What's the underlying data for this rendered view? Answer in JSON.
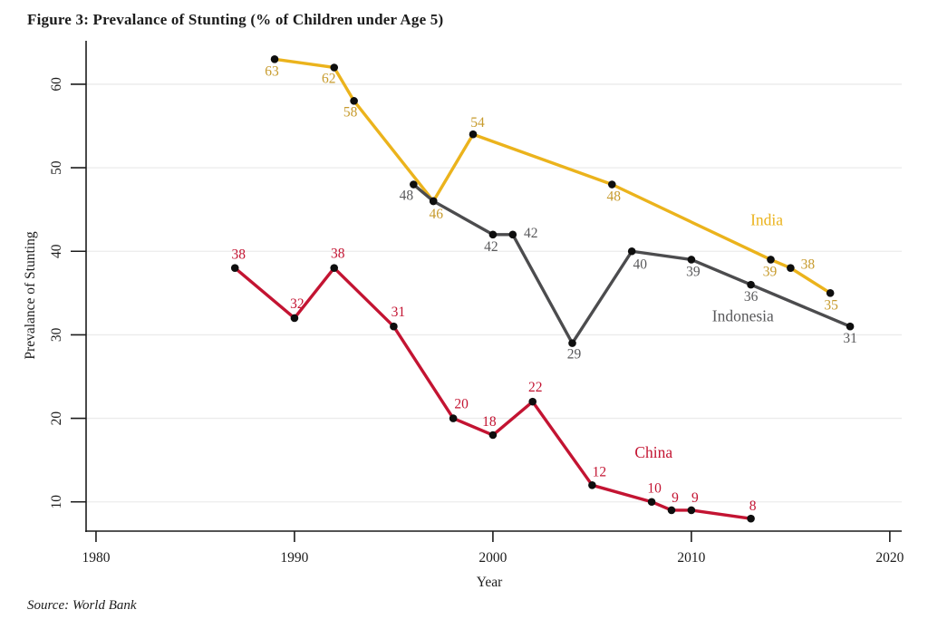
{
  "page": {
    "title": "Figure 3: Prevalance of Stunting (% of Children under Age 5)",
    "source_note": "Source: World Bank"
  },
  "chart_data": {
    "type": "line",
    "title": "Figure 3: Prevalance of Stunting (% of Children under Age 5)",
    "xlabel": "Year",
    "ylabel": "Prevalance of Stunting",
    "xlim": [
      1979.5,
      2020.6
    ],
    "ylim": [
      6.5,
      65.2
    ],
    "xticks": [
      1980,
      1990,
      2000,
      2010,
      2020
    ],
    "yticks": [
      10,
      20,
      30,
      40,
      50,
      60
    ],
    "grid": "horizontal-light",
    "legend": "inline-series-labels",
    "marker": "filled-circle",
    "colors": {
      "axis": "#1c1c1c",
      "gridline": "#ebebeb",
      "marker": "#0e0e0e",
      "tick_text": "#1c1c1c"
    },
    "series": [
      {
        "name": "India",
        "color": "#EBB31C",
        "label_color": "#C79B2D",
        "name_label": {
          "year": 2013.8,
          "value": 43.1
        },
        "points": [
          {
            "year": 1989,
            "value": 63,
            "dx": -3,
            "dy": 18
          },
          {
            "year": 1992,
            "value": 62,
            "dx": -6,
            "dy": 17
          },
          {
            "year": 1993,
            "value": 58,
            "dx": -4,
            "dy": 17
          },
          {
            "year": 1997,
            "value": 46,
            "dx": 3,
            "dy": 19
          },
          {
            "year": 1999,
            "value": 54,
            "dx": 5,
            "dy": -8
          },
          {
            "year": 2006,
            "value": 48,
            "dx": 2,
            "dy": 18
          },
          {
            "year": 2014,
            "value": 39,
            "dx": -1,
            "dy": 18
          },
          {
            "year": 2015,
            "value": 38,
            "dx": 19,
            "dy": 1
          },
          {
            "year": 2017,
            "value": 35,
            "dx": 1,
            "dy": 18
          }
        ]
      },
      {
        "name": "Indonesia",
        "color": "#4C4C4E",
        "label_color": "#59595B",
        "name_label": {
          "year": 2012.6,
          "value": 31.6
        },
        "points": [
          {
            "year": 1996,
            "value": 48,
            "dx": -8,
            "dy": 17
          },
          {
            "year": 1997,
            "value": 46,
            "show_label": false
          },
          {
            "year": 2000,
            "value": 42,
            "dx": -2,
            "dy": 18
          },
          {
            "year": 2001,
            "value": 42,
            "dx": 20,
            "dy": 3
          },
          {
            "year": 2004,
            "value": 29,
            "dx": 2,
            "dy": 17
          },
          {
            "year": 2007,
            "value": 40,
            "dx": 9,
            "dy": 19
          },
          {
            "year": 2010,
            "value": 39,
            "dx": 2,
            "dy": 18
          },
          {
            "year": 2013,
            "value": 36,
            "dx": 0,
            "dy": 18
          },
          {
            "year": 2018,
            "value": 31,
            "dx": 0,
            "dy": 18
          }
        ]
      },
      {
        "name": "China",
        "color": "#C31432",
        "label_color": "#C31432",
        "name_label": {
          "year": 2008.1,
          "value": 15.3
        },
        "points": [
          {
            "year": 1987,
            "value": 38,
            "dx": 4,
            "dy": -10
          },
          {
            "year": 1990,
            "value": 32,
            "dx": 3,
            "dy": -11
          },
          {
            "year": 1992,
            "value": 38,
            "dx": 4,
            "dy": -11
          },
          {
            "year": 1995,
            "value": 31,
            "dx": 5,
            "dy": -11
          },
          {
            "year": 1998,
            "value": 20,
            "dx": 9,
            "dy": -11
          },
          {
            "year": 2000,
            "value": 18,
            "dx": -4,
            "dy": -10
          },
          {
            "year": 2002,
            "value": 22,
            "dx": 3,
            "dy": -11
          },
          {
            "year": 2005,
            "value": 12,
            "dx": 8,
            "dy": -10
          },
          {
            "year": 2008,
            "value": 10,
            "dx": 3,
            "dy": -10
          },
          {
            "year": 2009,
            "value": 9,
            "dx": 4,
            "dy": -9
          },
          {
            "year": 2010,
            "value": 9,
            "dx": 4,
            "dy": -9
          },
          {
            "year": 2013,
            "value": 8,
            "dx": 2,
            "dy": -9
          }
        ]
      }
    ]
  }
}
